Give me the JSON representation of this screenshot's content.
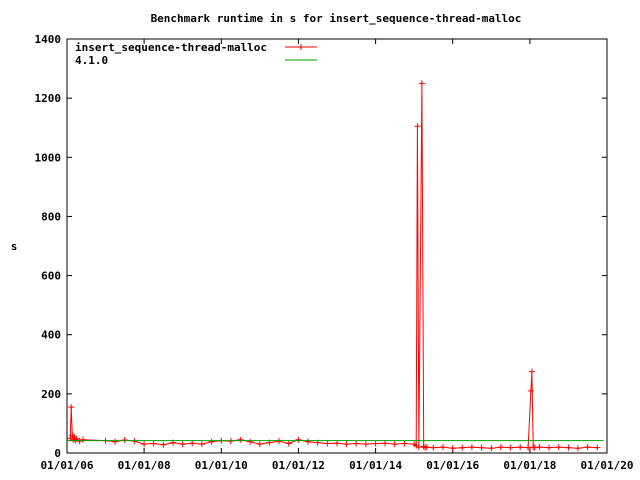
{
  "chart_data": {
    "type": "line",
    "title": "Benchmark runtime in s for insert_sequence-thread-malloc",
    "xlabel": "",
    "ylabel": "s",
    "xlim": [
      "2006-01-01",
      "2020-01-01"
    ],
    "ylim": [
      0,
      1400
    ],
    "x_ticks": [
      "01/01/06",
      "01/01/08",
      "01/01/10",
      "01/01/12",
      "01/01/14",
      "01/01/16",
      "01/01/18",
      "01/01/20"
    ],
    "x_tick_dates": [
      "2006-01-01",
      "2008-01-01",
      "2010-01-01",
      "2012-01-01",
      "2014-01-01",
      "2016-01-01",
      "2018-01-01",
      "2020-01-01"
    ],
    "y_ticks": [
      0,
      200,
      400,
      600,
      800,
      1000,
      1200,
      1400
    ],
    "grid": false,
    "legend_position": "top-left",
    "series": [
      {
        "name": "insert_sequence-thread-malloc",
        "color": "#ff0000",
        "style": "linespoints",
        "x": [
          "2006-02-01",
          "2006-02-10",
          "2006-02-20",
          "2006-03-01",
          "2006-03-10",
          "2006-03-20",
          "2006-04-01",
          "2006-05-01",
          "2006-06-01",
          "2007-01-01",
          "2007-04-01",
          "2007-07-01",
          "2007-10-01",
          "2008-01-01",
          "2008-04-01",
          "2008-07-01",
          "2008-10-01",
          "2009-01-01",
          "2009-04-01",
          "2009-07-01",
          "2009-10-01",
          "2010-01-01",
          "2010-04-01",
          "2010-07-01",
          "2010-10-01",
          "2011-01-01",
          "2011-04-01",
          "2011-07-01",
          "2011-10-01",
          "2012-01-01",
          "2012-04-01",
          "2012-07-01",
          "2012-10-01",
          "2013-01-01",
          "2013-04-01",
          "2013-07-01",
          "2013-10-01",
          "2014-01-01",
          "2014-04-01",
          "2014-07-01",
          "2014-10-01",
          "2015-01-01",
          "2015-01-20",
          "2015-02-01",
          "2015-02-15",
          "2015-03-15",
          "2015-04-01",
          "2015-04-15",
          "2015-05-01",
          "2015-07-01",
          "2015-10-01",
          "2016-01-01",
          "2016-04-01",
          "2016-07-01",
          "2016-10-01",
          "2017-01-01",
          "2017-04-01",
          "2017-07-01",
          "2017-10-01",
          "2017-12-15",
          "2018-01-10",
          "2018-01-20",
          "2018-02-01",
          "2018-02-15",
          "2018-04-01",
          "2018-07-01",
          "2018-10-01",
          "2019-01-01",
          "2019-04-01",
          "2019-07-01",
          "2019-10-01"
        ],
        "y": [
          50,
          155,
          60,
          45,
          55,
          42,
          48,
          40,
          45,
          42,
          38,
          44,
          40,
          30,
          32,
          28,
          35,
          30,
          33,
          30,
          38,
          42,
          40,
          45,
          38,
          30,
          35,
          40,
          32,
          45,
          38,
          35,
          32,
          33,
          30,
          32,
          30,
          32,
          33,
          30,
          32,
          30,
          25,
          1105,
          20,
          1250,
          22,
          18,
          20,
          18,
          20,
          16,
          18,
          20,
          18,
          16,
          20,
          18,
          20,
          18,
          210,
          275,
          20,
          18,
          20,
          18,
          20,
          18,
          16,
          20,
          18
        ]
      },
      {
        "name": "4.1.0",
        "color": "#00a000",
        "style": "line",
        "x": [
          "2006-01-01",
          "2019-12-01"
        ],
        "y": [
          42,
          42
        ]
      }
    ]
  }
}
